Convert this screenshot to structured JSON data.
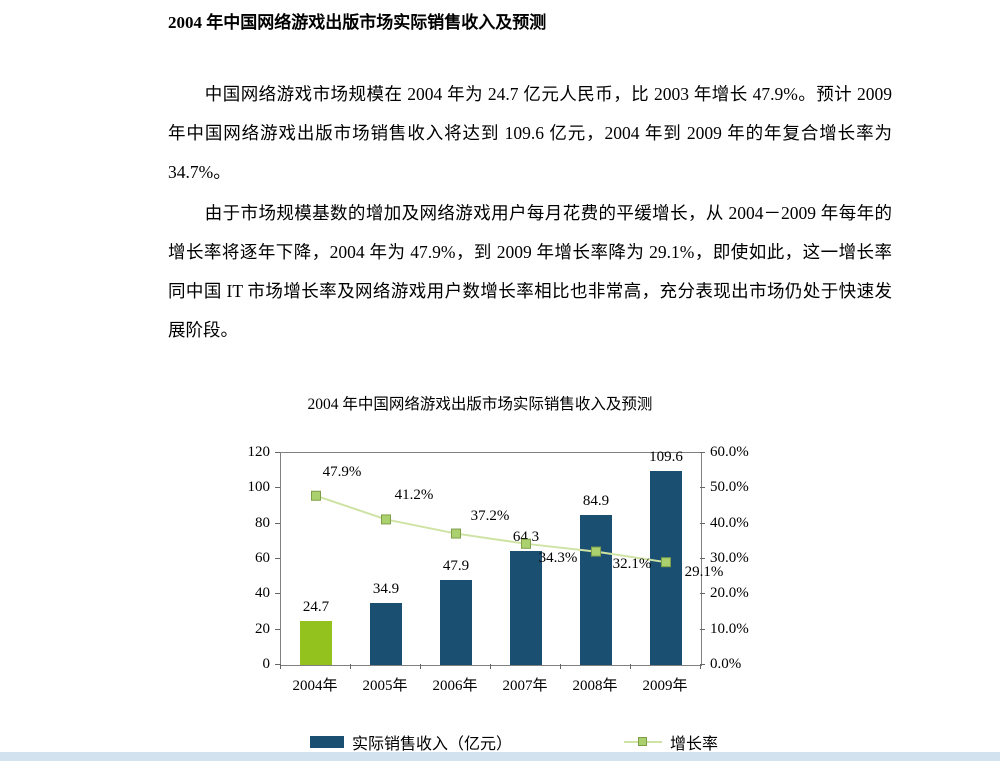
{
  "document": {
    "title": "2004 年中国网络游戏出版市场实际销售收入及预测",
    "paragraphs": [
      "中国网络游戏市场规模在 2004 年为 24.7 亿元人民币，比 2003 年增长 47.9%。预计 2009 年中国网络游戏出版市场销售收入将达到 109.6 亿元，2004 年到 2009 年的年复合增长率为 34.7%。",
      "由于市场规模基数的增加及网络游戏用户每月花费的平缓增长，从 2004－2009 年每年的增长率将逐年下降，2004 年为 47.9%，到 2009 年增长率降为 29.1%，即使如此，这一增长率同中国 IT 市场增长率及网络游戏用户数增长率相比也非常高，充分表现出市场仍处于快速发展阶段。"
    ]
  },
  "chart_data": {
    "type": "bar",
    "title": "2004 年中国网络游戏出版市场实际销售收入及预测",
    "categories": [
      "2004年",
      "2005年",
      "2006年",
      "2007年",
      "2008年",
      "2009年"
    ],
    "series": [
      {
        "name": "实际销售收入（亿元）",
        "type": "bar",
        "values": [
          24.7,
          34.9,
          47.9,
          64.3,
          84.9,
          109.6
        ],
        "labels": [
          "24.7",
          "34.9",
          "47.9",
          "64.3",
          "84.9",
          "109.6"
        ],
        "colors": [
          "#93c11e",
          "#1b4f72",
          "#1b4f72",
          "#1b4f72",
          "#1b4f72",
          "#1b4f72"
        ]
      },
      {
        "name": "增长率",
        "type": "line",
        "values": [
          47.9,
          41.2,
          37.2,
          34.3,
          32.1,
          29.1
        ],
        "labels": [
          "47.9%",
          "41.2%",
          "37.2%",
          "34.3%",
          "32.1%",
          "29.1%"
        ]
      }
    ],
    "left_axis": {
      "min": 0,
      "max": 120,
      "step": 20,
      "ticks": [
        "0",
        "20",
        "40",
        "60",
        "80",
        "100",
        "120"
      ]
    },
    "right_axis": {
      "min": 0,
      "max": 60,
      "step": 10,
      "ticks": [
        "0.0%",
        "10.0%",
        "20.0%",
        "30.0%",
        "40.0%",
        "50.0%",
        "60.0%"
      ]
    },
    "legend": [
      "实际销售收入（亿元）",
      "增长率"
    ],
    "legend_position": "bottom",
    "grid": false,
    "colors": {
      "bar": "#1b4f72",
      "bar_first": "#93c11e",
      "line": "#cfe3a5",
      "marker": "#aad16e",
      "marker_border": "#7f9e4a"
    }
  }
}
